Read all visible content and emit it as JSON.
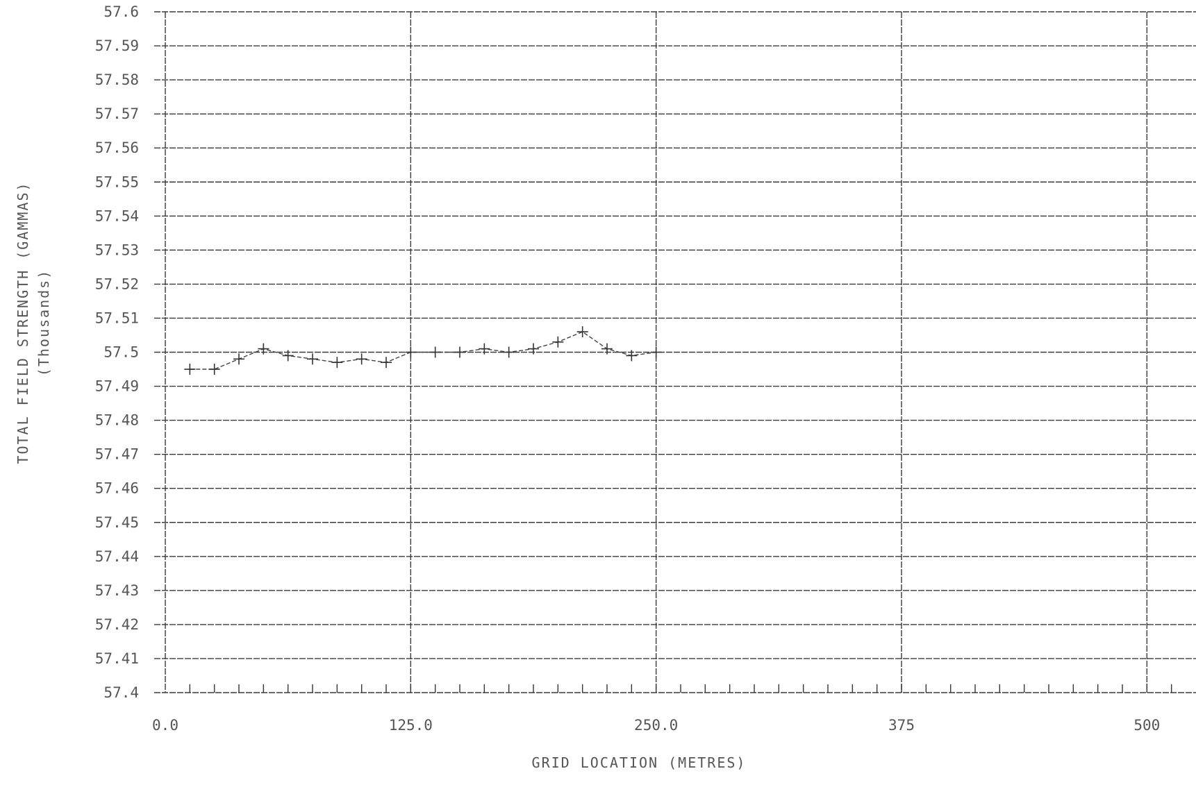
{
  "chart_data": {
    "type": "line",
    "title": "",
    "xlabel": "GRID LOCATION (METRES)",
    "ylabel": "TOTAL FIELD STRENGTH (GAMMAS)",
    "ylabel_sub": "(Thousands)",
    "x_tick_labels": [
      "0.0",
      "125.0",
      "250.0",
      "375",
      "500"
    ],
    "x_tick_values": [
      0,
      125,
      250,
      375,
      500
    ],
    "xlim": [
      0,
      525
    ],
    "x_minor_step": 12.5,
    "y_tick_labels": [
      "57.6",
      "57.59",
      "57.58",
      "57.57",
      "57.56",
      "57.55",
      "57.54",
      "57.53",
      "57.52",
      "57.51",
      "57.5",
      "57.49",
      "57.48",
      "57.47",
      "57.46",
      "57.45",
      "57.44",
      "57.43",
      "57.42",
      "57.41",
      "57.4"
    ],
    "ylim": [
      57.4,
      57.6
    ],
    "grid": true,
    "series": [
      {
        "x": [
          12.5,
          25,
          37.5,
          50,
          62.5,
          75,
          87.5,
          100,
          112.5,
          125,
          137.5,
          150,
          162.5,
          175,
          187.5,
          200,
          212.5,
          225,
          237.5,
          250
        ],
        "y": [
          57.495,
          57.495,
          57.498,
          57.501,
          57.499,
          57.498,
          57.497,
          57.498,
          57.497,
          57.5,
          57.5,
          57.5,
          57.501,
          57.5,
          57.501,
          57.503,
          57.506,
          57.501,
          57.499,
          57.5
        ]
      }
    ]
  }
}
